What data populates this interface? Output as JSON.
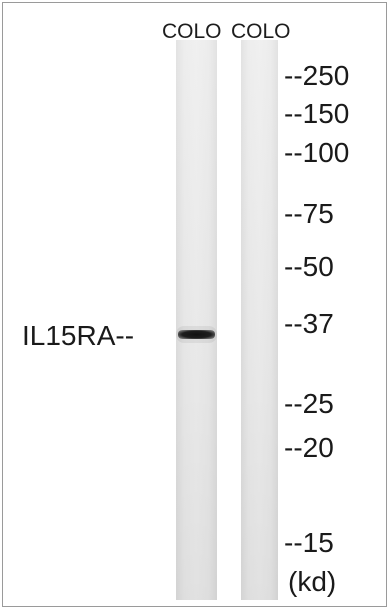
{
  "lanes": [
    {
      "label": "COLO"
    },
    {
      "label": "COLO"
    }
  ],
  "protein_label": "IL15RA--",
  "markers": [
    {
      "text": "--250"
    },
    {
      "text": "--150"
    },
    {
      "text": "--100"
    },
    {
      "text": "--75"
    },
    {
      "text": "--50"
    },
    {
      "text": "--37"
    },
    {
      "text": "--25"
    },
    {
      "text": "--20"
    },
    {
      "text": "--15"
    }
  ],
  "unit_label": "(kd)"
}
